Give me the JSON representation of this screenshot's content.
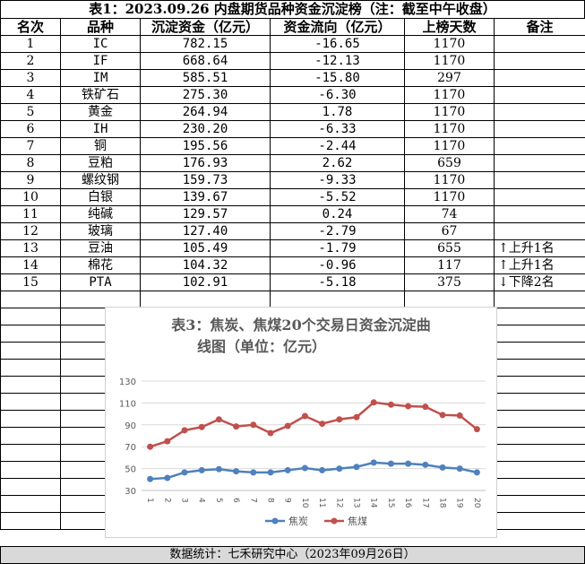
{
  "table": {
    "title": "表1：2023.09.26 内盘期货品种资金沉淀榜（注：截至中午收盘）",
    "headers": [
      "名次",
      "品种",
      "沉淀资金（亿元）",
      "资金流向（亿元）",
      "上榜天数",
      "备注"
    ],
    "rows": [
      {
        "rank": "1",
        "name": "IC",
        "fund": "782.15",
        "flow": "-16.65",
        "days": "1170",
        "note": ""
      },
      {
        "rank": "2",
        "name": "IF",
        "fund": "668.64",
        "flow": "-12.13",
        "days": "1170",
        "note": ""
      },
      {
        "rank": "3",
        "name": "IM",
        "fund": "585.51",
        "flow": "-15.80",
        "days": "297",
        "note": ""
      },
      {
        "rank": "4",
        "name": "铁矿石",
        "fund": "275.30",
        "flow": "-6.30",
        "days": "1170",
        "note": ""
      },
      {
        "rank": "5",
        "name": "黄金",
        "fund": "264.94",
        "flow": "1.78",
        "days": "1170",
        "note": ""
      },
      {
        "rank": "6",
        "name": "IH",
        "fund": "230.20",
        "flow": "-6.33",
        "days": "1170",
        "note": ""
      },
      {
        "rank": "7",
        "name": "铜",
        "fund": "195.56",
        "flow": "-2.44",
        "days": "1170",
        "note": ""
      },
      {
        "rank": "8",
        "name": "豆粕",
        "fund": "176.93",
        "flow": "2.62",
        "days": "659",
        "note": ""
      },
      {
        "rank": "9",
        "name": "螺纹钢",
        "fund": "159.73",
        "flow": "-9.33",
        "days": "1170",
        "note": ""
      },
      {
        "rank": "10",
        "name": "白银",
        "fund": "139.67",
        "flow": "-5.52",
        "days": "1170",
        "note": ""
      },
      {
        "rank": "11",
        "name": "纯碱",
        "fund": "129.57",
        "flow": "0.24",
        "days": "74",
        "note": ""
      },
      {
        "rank": "12",
        "name": "玻璃",
        "fund": "127.40",
        "flow": "-2.79",
        "days": "67",
        "note": ""
      },
      {
        "rank": "13",
        "name": "豆油",
        "fund": "105.49",
        "flow": "-1.79",
        "days": "655",
        "note": "↑上升1名"
      },
      {
        "rank": "14",
        "name": "棉花",
        "fund": "104.32",
        "flow": "-0.96",
        "days": "117",
        "note": "↑上升1名"
      },
      {
        "rank": "15",
        "name": "PTA",
        "fund": "102.91",
        "flow": "-5.18",
        "days": "375",
        "note": "↓下降2名"
      }
    ]
  },
  "footer": "数据统计：七禾研究中心（2023年09月26日）",
  "chart_data": {
    "type": "line",
    "title_line1": "表3：焦炭、焦煤20个交易日资金沉淀曲",
    "title_line2": "线图（单位：亿元）",
    "x": [
      "1",
      "2",
      "3",
      "4",
      "5",
      "6",
      "7",
      "8",
      "9",
      "10",
      "11",
      "12",
      "13",
      "14",
      "15",
      "16",
      "17",
      "18",
      "19",
      "20"
    ],
    "ylim": [
      30,
      130
    ],
    "yticks": [
      30,
      50,
      70,
      90,
      110,
      130
    ],
    "grid": true,
    "legend_position": "bottom",
    "series": [
      {
        "name": "焦炭",
        "color": "#4f81bd",
        "values": [
          40.5,
          41.5,
          46.5,
          48.5,
          49.5,
          47.5,
          46.5,
          46.5,
          48.5,
          50.5,
          48.5,
          50,
          51.5,
          55.5,
          54.5,
          54.5,
          53.5,
          51,
          50,
          46.5
        ]
      },
      {
        "name": "焦煤",
        "color": "#c0504d",
        "values": [
          70,
          75,
          85,
          88,
          95,
          88.5,
          90,
          82.5,
          89,
          98,
          91,
          95,
          97,
          110.5,
          108.5,
          107,
          106.5,
          99,
          98.5,
          86
        ]
      }
    ]
  }
}
